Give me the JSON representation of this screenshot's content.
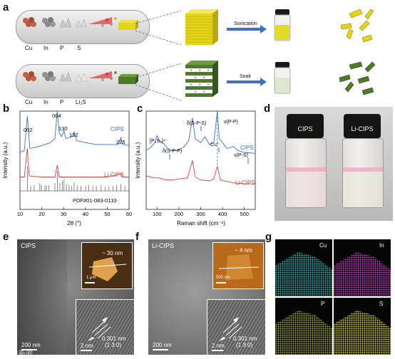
{
  "panel_a": {
    "label": "a",
    "row1_elements": [
      "Cu",
      "In",
      "P",
      "S"
    ],
    "row2_elements": [
      "Cu",
      "In",
      "P",
      "Li₂S"
    ],
    "row1_process": "Sonication",
    "row2_process": "Soak",
    "colors": {
      "yellow": "#e5d51a",
      "green": "#4f7a2c",
      "capsule": "#d8d8d8"
    }
  },
  "panel_b": {
    "label": "b",
    "peak_labels": [
      "002",
      "004",
      "130",
      "132",
      "225"
    ],
    "series_labels": [
      "CIPS",
      "Li-CIPS"
    ],
    "reference": "PDF#01-083-0133"
  },
  "panel_c": {
    "label": "c",
    "annotations": [
      "[P₂S₆]⁴⁻",
      "δ(S-P-P)",
      "δ(S-P-S)",
      "Cu⁺",
      "ν(P-P)",
      "ν(P-S)"
    ],
    "series_labels": [
      "CIPS",
      "Li-CIPS"
    ]
  },
  "panel_d": {
    "label": "d",
    "vial_labels": [
      "CIPS",
      "Li-CIPS"
    ]
  },
  "panel_e": {
    "label": "e",
    "sample": "CIPS",
    "thickness": "~ 30 nm",
    "inset_scale": "1 μm",
    "scale": "200 nm",
    "hr_scale": "2 nm",
    "spacing": "0.301 nm",
    "plane": "(1 3 0)"
  },
  "panel_f": {
    "label": "f",
    "sample": "Li-CIPS",
    "thickness": "~ 4 nm",
    "inset_scale": "500 nm",
    "scale": "200 nm",
    "hr_scale": "2 nm",
    "spacing": "0.301 nm",
    "plane": "(1 3 0)"
  },
  "panel_g": {
    "label": "g",
    "elements": [
      "Cu",
      "In",
      "P",
      "S"
    ],
    "colors": {
      "Cu": "#27b5b5",
      "In": "#c23cc2",
      "P": "#9aa238",
      "S": "#d4d02a"
    }
  },
  "watermark": "大象新闻",
  "chart_data": [
    {
      "type": "line",
      "title": "",
      "xlabel": "2θ (°)",
      "ylabel": "Intensity (a.u.)",
      "xlim": [
        10,
        60
      ],
      "x_ticks": [
        10,
        20,
        30,
        40,
        50,
        60
      ],
      "series": [
        {
          "name": "CIPS",
          "color": "#3a6fc4",
          "points": [
            [
              10,
              0.58
            ],
            [
              12,
              0.6
            ],
            [
              13.4,
              0.95
            ],
            [
              14.5,
              0.62
            ],
            [
              17,
              0.63
            ],
            [
              20,
              0.65
            ],
            [
              24,
              0.68
            ],
            [
              26,
              0.72
            ],
            [
              27.1,
              1.0
            ],
            [
              28,
              0.78
            ],
            [
              29,
              0.74
            ],
            [
              30.2,
              0.8
            ],
            [
              31,
              0.72
            ],
            [
              34,
              0.74
            ],
            [
              34.8,
              0.79
            ],
            [
              36,
              0.7
            ],
            [
              40,
              0.68
            ],
            [
              45,
              0.66
            ],
            [
              50,
              0.66
            ],
            [
              55,
              0.66
            ],
            [
              56.2,
              0.73
            ],
            [
              57,
              0.66
            ],
            [
              60,
              0.65
            ]
          ]
        },
        {
          "name": "Li-CIPS",
          "color": "#d8413c",
          "points": [
            [
              10,
              0.33
            ],
            [
              12,
              0.33
            ],
            [
              13.4,
              0.62
            ],
            [
              14.2,
              0.34
            ],
            [
              20,
              0.33
            ],
            [
              26,
              0.33
            ],
            [
              27.1,
              0.45
            ],
            [
              28,
              0.33
            ],
            [
              40,
              0.33
            ],
            [
              50,
              0.33
            ],
            [
              56.2,
              0.36
            ],
            [
              57,
              0.33
            ],
            [
              60,
              0.33
            ]
          ]
        }
      ],
      "reference_sticks": [
        [
          13.4,
          0.25
        ],
        [
          14.9,
          0.05
        ],
        [
          16.5,
          0.06
        ],
        [
          19.1,
          0.08
        ],
        [
          19.8,
          0.06
        ],
        [
          21.4,
          0.05
        ],
        [
          22.1,
          0.06
        ],
        [
          23.2,
          0.06
        ],
        [
          26.0,
          0.08
        ],
        [
          27.1,
          0.2
        ],
        [
          28.3,
          0.08
        ],
        [
          29.5,
          0.1
        ],
        [
          30.2,
          0.12
        ],
        [
          31.3,
          0.07
        ],
        [
          32.5,
          0.06
        ],
        [
          33.6,
          0.05
        ],
        [
          34.8,
          0.09
        ],
        [
          36.2,
          0.06
        ],
        [
          38.0,
          0.05
        ],
        [
          40.1,
          0.05
        ],
        [
          41.5,
          0.06
        ],
        [
          43.4,
          0.05
        ],
        [
          45.0,
          0.05
        ],
        [
          47.2,
          0.06
        ],
        [
          49.1,
          0.04
        ],
        [
          50.8,
          0.05
        ],
        [
          52.6,
          0.05
        ],
        [
          54.3,
          0.06
        ],
        [
          56.2,
          0.07
        ],
        [
          58.1,
          0.05
        ]
      ]
    },
    {
      "type": "line",
      "title": "",
      "xlabel": "Raman shift (cm⁻¹)",
      "ylabel": "Intensity (a.u.)",
      "xlim": [
        50,
        550
      ],
      "x_ticks": [
        100,
        200,
        300,
        400,
        500
      ],
      "series": [
        {
          "name": "CIPS",
          "color": "#3a6fc4",
          "points": [
            [
              50,
              0.6
            ],
            [
              70,
              0.63
            ],
            [
              90,
              0.68
            ],
            [
              100,
              0.75
            ],
            [
              110,
              0.7
            ],
            [
              125,
              0.68
            ],
            [
              150,
              0.62
            ],
            [
              165,
              0.6
            ],
            [
              190,
              0.6
            ],
            [
              220,
              0.63
            ],
            [
              245,
              0.7
            ],
            [
              262,
              0.93
            ],
            [
              275,
              0.72
            ],
            [
              300,
              0.68
            ],
            [
              320,
              0.74
            ],
            [
              340,
              0.66
            ],
            [
              360,
              0.68
            ],
            [
              376,
              1.0
            ],
            [
              385,
              0.72
            ],
            [
              420,
              0.62
            ],
            [
              450,
              0.64
            ],
            [
              470,
              0.6
            ],
            [
              500,
              0.58
            ],
            [
              550,
              0.57
            ]
          ]
        },
        {
          "name": "Li-CIPS",
          "color": "#d8413c",
          "points": [
            [
              50,
              0.34
            ],
            [
              70,
              0.33
            ],
            [
              90,
              0.32
            ],
            [
              110,
              0.32
            ],
            [
              140,
              0.3
            ],
            [
              170,
              0.3
            ],
            [
              200,
              0.31
            ],
            [
              240,
              0.32
            ],
            [
              262,
              0.5
            ],
            [
              275,
              0.33
            ],
            [
              300,
              0.3
            ],
            [
              340,
              0.29
            ],
            [
              360,
              0.31
            ],
            [
              376,
              0.44
            ],
            [
              390,
              0.3
            ],
            [
              450,
              0.27
            ],
            [
              500,
              0.26
            ],
            [
              550,
              0.26
            ]
          ]
        }
      ]
    }
  ]
}
